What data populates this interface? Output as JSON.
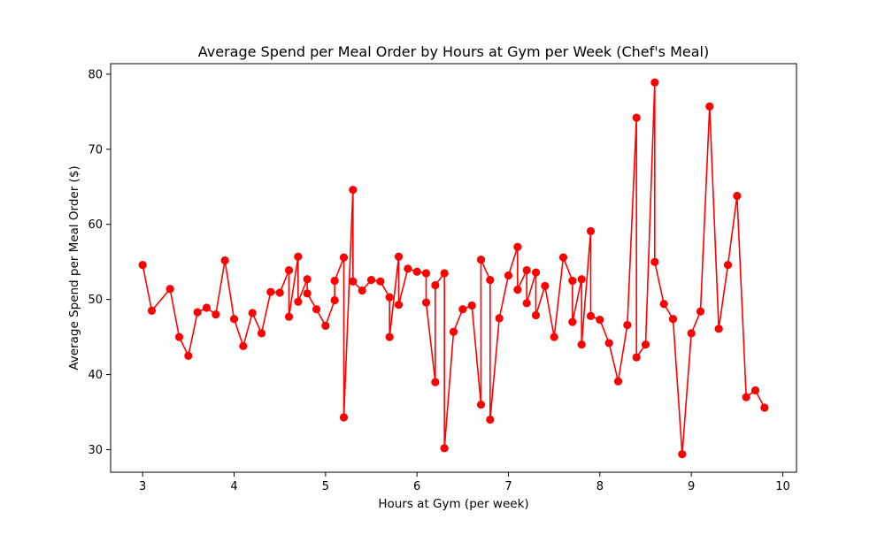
{
  "chart_data": {
    "type": "line",
    "title": "Average Spend per Meal Order by Hours at Gym per Week (Chef's Meal)",
    "xlabel": "Hours at Gym (per week)",
    "ylabel": "Average Spend per Meal Order ($)",
    "xlim": [
      2.65,
      10.15
    ],
    "ylim": [
      27.0,
      81.4
    ],
    "xticks": [
      3,
      4,
      5,
      6,
      7,
      8,
      9,
      10
    ],
    "yticks": [
      30,
      40,
      50,
      60,
      70,
      80
    ],
    "grid": false,
    "legend": "none",
    "series": [
      {
        "color": "#ff0000",
        "marker": "circle",
        "points": [
          [
            3.0,
            54.6
          ],
          [
            3.1,
            48.5
          ],
          [
            3.3,
            51.4
          ],
          [
            3.4,
            45.0
          ],
          [
            3.5,
            42.5
          ],
          [
            3.6,
            48.3
          ],
          [
            3.7,
            48.9
          ],
          [
            3.8,
            48.0
          ],
          [
            3.9,
            55.2
          ],
          [
            4.0,
            47.4
          ],
          [
            4.1,
            43.8
          ],
          [
            4.2,
            48.2
          ],
          [
            4.3,
            45.5
          ],
          [
            4.4,
            51.0
          ],
          [
            4.5,
            50.9
          ],
          [
            4.6,
            53.9
          ],
          [
            4.6,
            47.7
          ],
          [
            4.7,
            55.7
          ],
          [
            4.7,
            49.7
          ],
          [
            4.8,
            52.7
          ],
          [
            4.8,
            50.8
          ],
          [
            4.9,
            48.7
          ],
          [
            5.0,
            46.5
          ],
          [
            5.1,
            49.9
          ],
          [
            5.1,
            52.5
          ],
          [
            5.2,
            55.6
          ],
          [
            5.2,
            34.3
          ],
          [
            5.3,
            64.6
          ],
          [
            5.3,
            52.4
          ],
          [
            5.4,
            51.2
          ],
          [
            5.5,
            52.6
          ],
          [
            5.6,
            52.4
          ],
          [
            5.7,
            50.3
          ],
          [
            5.7,
            45.0
          ],
          [
            5.8,
            55.7
          ],
          [
            5.8,
            49.3
          ],
          [
            5.9,
            54.1
          ],
          [
            6.0,
            53.7
          ],
          [
            6.1,
            53.5
          ],
          [
            6.1,
            49.6
          ],
          [
            6.2,
            39.0
          ],
          [
            6.2,
            51.9
          ],
          [
            6.3,
            53.5
          ],
          [
            6.3,
            30.2
          ],
          [
            6.4,
            45.7
          ],
          [
            6.5,
            48.7
          ],
          [
            6.6,
            49.2
          ],
          [
            6.7,
            36.0
          ],
          [
            6.7,
            55.3
          ],
          [
            6.8,
            52.6
          ],
          [
            6.8,
            34.0
          ],
          [
            6.9,
            47.5
          ],
          [
            7.0,
            53.2
          ],
          [
            7.1,
            57.0
          ],
          [
            7.1,
            51.3
          ],
          [
            7.2,
            53.9
          ],
          [
            7.2,
            49.5
          ],
          [
            7.3,
            53.6
          ],
          [
            7.3,
            47.9
          ],
          [
            7.4,
            51.8
          ],
          [
            7.5,
            45.0
          ],
          [
            7.6,
            55.6
          ],
          [
            7.7,
            52.5
          ],
          [
            7.7,
            47.0
          ],
          [
            7.8,
            52.7
          ],
          [
            7.8,
            44.0
          ],
          [
            7.9,
            59.1
          ],
          [
            7.9,
            47.8
          ],
          [
            8.0,
            47.3
          ],
          [
            8.1,
            44.2
          ],
          [
            8.2,
            39.1
          ],
          [
            8.3,
            46.6
          ],
          [
            8.4,
            74.2
          ],
          [
            8.4,
            42.3
          ],
          [
            8.5,
            44.0
          ],
          [
            8.6,
            78.9
          ],
          [
            8.6,
            55.0
          ],
          [
            8.7,
            49.4
          ],
          [
            8.8,
            47.4
          ],
          [
            8.9,
            29.4
          ],
          [
            9.0,
            45.5
          ],
          [
            9.1,
            48.4
          ],
          [
            9.2,
            75.7
          ],
          [
            9.3,
            46.1
          ],
          [
            9.4,
            54.6
          ],
          [
            9.5,
            63.8
          ],
          [
            9.6,
            37.0
          ],
          [
            9.7,
            37.9
          ],
          [
            9.8,
            35.6
          ]
        ]
      }
    ]
  }
}
